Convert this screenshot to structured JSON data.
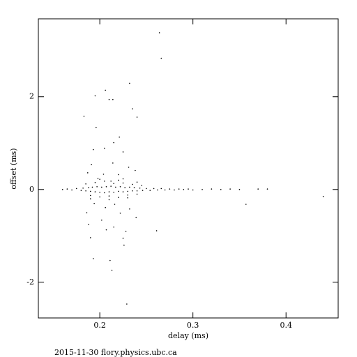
{
  "chart_data": {
    "type": "scatter",
    "xlabel": "delay (ms)",
    "ylabel": "offset (ms)",
    "footer": "2015-11-30 flory.physics.ubc.ca",
    "color": "#000000",
    "xlim": [
      0.134,
      0.456
    ],
    "ylim": [
      -2.77,
      3.68
    ],
    "xticks": [
      0.2,
      0.3,
      0.4
    ],
    "yticks": [
      -2,
      0,
      2
    ],
    "x": [
      0.264,
      0.266,
      0.206,
      0.195,
      0.21,
      0.214,
      0.232,
      0.183,
      0.24,
      0.196,
      0.235,
      0.221,
      0.215,
      0.205,
      0.193,
      0.225,
      0.191,
      0.214,
      0.231,
      0.187,
      0.204,
      0.238,
      0.22,
      0.198,
      0.225,
      0.212,
      0.194,
      0.216,
      0.206,
      0.232,
      0.186,
      0.222,
      0.202,
      0.239,
      0.188,
      0.215,
      0.207,
      0.228,
      0.261,
      0.19,
      0.225,
      0.226,
      0.193,
      0.211,
      0.213,
      0.229,
      0.357,
      0.44,
      0.16,
      0.165,
      0.17,
      0.175,
      0.18,
      0.182,
      0.185,
      0.188,
      0.19,
      0.192,
      0.195,
      0.197,
      0.2,
      0.202,
      0.205,
      0.207,
      0.21,
      0.212,
      0.215,
      0.217,
      0.22,
      0.222,
      0.225,
      0.227,
      0.23,
      0.232,
      0.235,
      0.237,
      0.24,
      0.243,
      0.246,
      0.25,
      0.254,
      0.258,
      0.262,
      0.266,
      0.27,
      0.275,
      0.28,
      0.285,
      0.29,
      0.295,
      0.3,
      0.31,
      0.32,
      0.33,
      0.34,
      0.35,
      0.37,
      0.38,
      0.185,
      0.19,
      0.195,
      0.2,
      0.205,
      0.21,
      0.215,
      0.22,
      0.225,
      0.23,
      0.235,
      0.24,
      0.245,
      0.19,
      0.2,
      0.21,
      0.22,
      0.23,
      0.24
    ],
    "values": [
      3.38,
      2.83,
      2.14,
      2.02,
      1.94,
      1.94,
      2.29,
      1.58,
      1.56,
      1.34,
      1.74,
      1.13,
      1.01,
      0.89,
      0.86,
      0.81,
      0.54,
      0.57,
      0.48,
      0.36,
      0.33,
      0.41,
      0.32,
      0.24,
      0.23,
      0.18,
      -0.3,
      -0.32,
      -0.39,
      -0.42,
      -0.5,
      -0.51,
      -0.66,
      -0.6,
      -0.75,
      -0.81,
      -0.87,
      -0.9,
      -0.89,
      -1.04,
      -1.05,
      -1.2,
      -1.49,
      -1.53,
      -1.74,
      -2.47,
      -0.32,
      -0.15,
      0.0,
      0.01,
      -0.01,
      0.02,
      -0.02,
      0.03,
      -0.03,
      0.04,
      -0.04,
      0.05,
      -0.05,
      0.06,
      -0.06,
      0.05,
      -0.07,
      0.06,
      -0.05,
      0.07,
      -0.06,
      0.05,
      -0.04,
      0.06,
      -0.05,
      0.04,
      -0.04,
      0.05,
      -0.03,
      0.04,
      -0.03,
      0.03,
      -0.02,
      0.02,
      -0.02,
      0.02,
      -0.01,
      0.02,
      -0.01,
      0.01,
      -0.01,
      0.01,
      0.0,
      0.01,
      -0.01,
      0.0,
      0.01,
      0.0,
      0.01,
      0.0,
      0.01,
      0.01,
      0.12,
      -0.13,
      0.15,
      -0.16,
      0.18,
      -0.14,
      0.13,
      -0.17,
      0.14,
      -0.12,
      0.11,
      -0.1,
      0.09,
      -0.2,
      0.22,
      -0.22,
      0.2,
      -0.18,
      0.16
    ]
  }
}
